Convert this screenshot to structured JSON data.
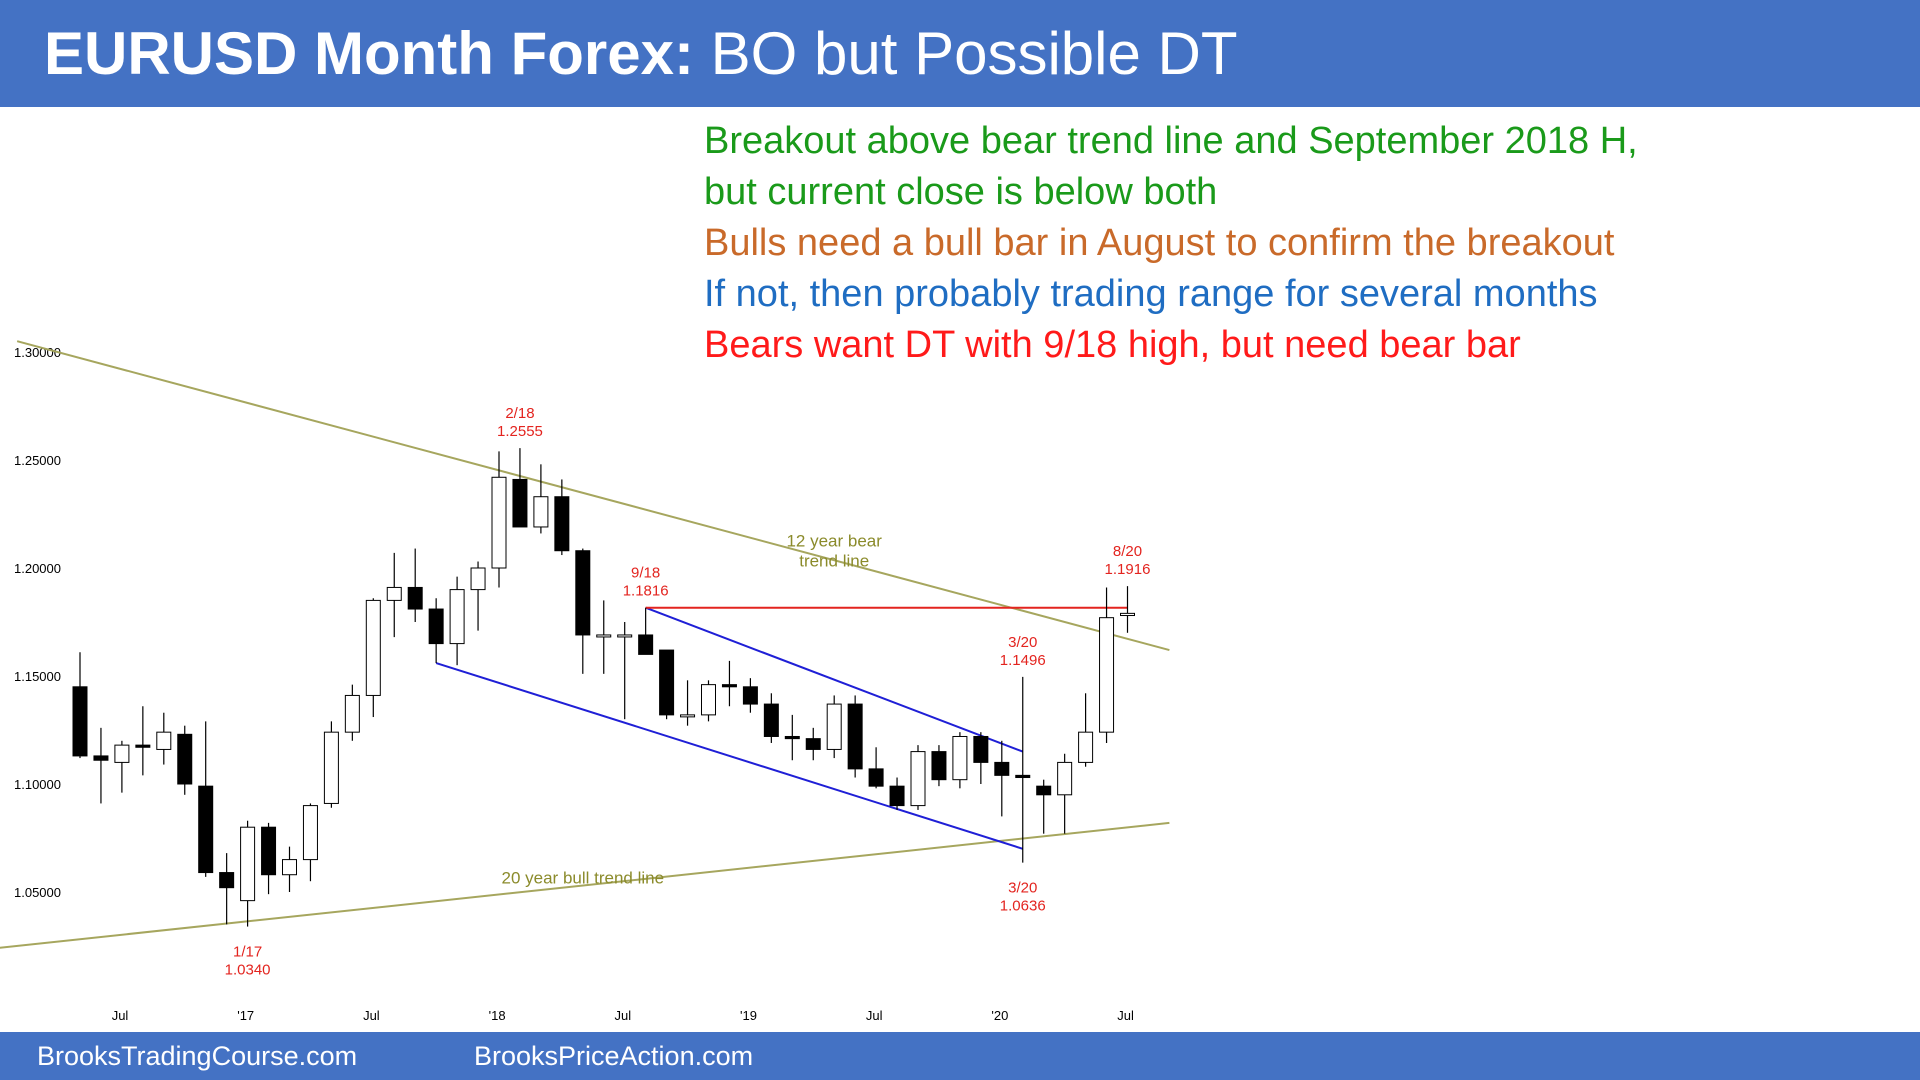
{
  "header": {
    "title_bold": "EURUSD Month Forex:",
    "title_rest": " BO but Possible DT"
  },
  "notes": [
    {
      "text": "Breakout above bear trend line and September 2018 H,",
      "color": "#1a9a1a"
    },
    {
      "text": "but current close is below both",
      "color": "#1a9a1a"
    },
    {
      "text": "Bulls need a bull bar in August to confirm the breakout",
      "color": "#c96a2a"
    },
    {
      "text": "If not, then probably trading range for several months",
      "color": "#1f6dc2"
    },
    {
      "text": "Bears want DT with 9/18 high, but need bear bar",
      "color": "#ff1a1a"
    }
  ],
  "footer": {
    "left": "BrooksTradingCourse.com",
    "right": "BrooksPriceAction.com"
  },
  "chart_data": {
    "type": "candlestick",
    "y_ticks": [
      {
        "value": 1.05,
        "label": "1.05000"
      },
      {
        "value": 1.1,
        "label": "1.10000"
      },
      {
        "value": 1.15,
        "label": "1.15000"
      },
      {
        "value": 1.2,
        "label": "1.20000"
      },
      {
        "value": 1.25,
        "label": "1.25000"
      },
      {
        "value": 1.3,
        "label": "1.30000"
      }
    ],
    "ylim": [
      1.0,
      1.31
    ],
    "x_ticks": [
      {
        "index": 0,
        "label": "Jul"
      },
      {
        "index": 6,
        "label": "'17"
      },
      {
        "index": 12,
        "label": "Jul"
      },
      {
        "index": 18,
        "label": "'18"
      },
      {
        "index": 24,
        "label": "Jul"
      },
      {
        "index": 30,
        "label": "'19"
      },
      {
        "index": 36,
        "label": "Jul"
      },
      {
        "index": 42,
        "label": "'20"
      },
      {
        "index": 48,
        "label": "Jul"
      }
    ],
    "candles": [
      {
        "o": 1.145,
        "h": 1.161,
        "l": 1.112,
        "c": 1.113
      },
      {
        "o": 1.113,
        "h": 1.126,
        "l": 1.091,
        "c": 1.111
      },
      {
        "o": 1.11,
        "h": 1.12,
        "l": 1.096,
        "c": 1.118
      },
      {
        "o": 1.118,
        "h": 1.136,
        "l": 1.104,
        "c": 1.117
      },
      {
        "o": 1.116,
        "h": 1.133,
        "l": 1.109,
        "c": 1.124
      },
      {
        "o": 1.123,
        "h": 1.127,
        "l": 1.095,
        "c": 1.1
      },
      {
        "o": 1.099,
        "h": 1.129,
        "l": 1.057,
        "c": 1.059
      },
      {
        "o": 1.059,
        "h": 1.068,
        "l": 1.035,
        "c": 1.052
      },
      {
        "o": 1.046,
        "h": 1.083,
        "l": 1.034,
        "c": 1.08
      },
      {
        "o": 1.08,
        "h": 1.082,
        "l": 1.049,
        "c": 1.058
      },
      {
        "o": 1.058,
        "h": 1.071,
        "l": 1.05,
        "c": 1.065
      },
      {
        "o": 1.065,
        "h": 1.091,
        "l": 1.055,
        "c": 1.09
      },
      {
        "o": 1.091,
        "h": 1.129,
        "l": 1.089,
        "c": 1.124
      },
      {
        "o": 1.124,
        "h": 1.146,
        "l": 1.12,
        "c": 1.141
      },
      {
        "o": 1.141,
        "h": 1.186,
        "l": 1.131,
        "c": 1.185
      },
      {
        "o": 1.185,
        "h": 1.207,
        "l": 1.168,
        "c": 1.191
      },
      {
        "o": 1.191,
        "h": 1.209,
        "l": 1.175,
        "c": 1.181
      },
      {
        "o": 1.181,
        "h": 1.186,
        "l": 1.156,
        "c": 1.165
      },
      {
        "o": 1.165,
        "h": 1.196,
        "l": 1.155,
        "c": 1.19
      },
      {
        "o": 1.19,
        "h": 1.203,
        "l": 1.171,
        "c": 1.2
      },
      {
        "o": 1.2,
        "h": 1.254,
        "l": 1.191,
        "c": 1.242
      },
      {
        "o": 1.241,
        "h": 1.2555,
        "l": 1.219,
        "c": 1.219
      },
      {
        "o": 1.219,
        "h": 1.248,
        "l": 1.216,
        "c": 1.233
      },
      {
        "o": 1.233,
        "h": 1.241,
        "l": 1.206,
        "c": 1.208
      },
      {
        "o": 1.208,
        "h": 1.209,
        "l": 1.151,
        "c": 1.169
      },
      {
        "o": 1.169,
        "h": 1.185,
        "l": 1.151,
        "c": 1.169
      },
      {
        "o": 1.169,
        "h": 1.175,
        "l": 1.13,
        "c": 1.169
      },
      {
        "o": 1.169,
        "h": 1.1816,
        "l": 1.161,
        "c": 1.16
      },
      {
        "o": 1.162,
        "h": 1.162,
        "l": 1.13,
        "c": 1.132
      },
      {
        "o": 1.132,
        "h": 1.148,
        "l": 1.127,
        "c": 1.132
      },
      {
        "o": 1.132,
        "h": 1.148,
        "l": 1.129,
        "c": 1.146
      },
      {
        "o": 1.146,
        "h": 1.157,
        "l": 1.136,
        "c": 1.145
      },
      {
        "o": 1.145,
        "h": 1.149,
        "l": 1.133,
        "c": 1.137
      },
      {
        "o": 1.137,
        "h": 1.142,
        "l": 1.119,
        "c": 1.122
      },
      {
        "o": 1.122,
        "h": 1.132,
        "l": 1.111,
        "c": 1.121
      },
      {
        "o": 1.121,
        "h": 1.126,
        "l": 1.111,
        "c": 1.116
      },
      {
        "o": 1.116,
        "h": 1.141,
        "l": 1.112,
        "c": 1.137
      },
      {
        "o": 1.137,
        "h": 1.141,
        "l": 1.103,
        "c": 1.107
      },
      {
        "o": 1.107,
        "h": 1.117,
        "l": 1.098,
        "c": 1.099
      },
      {
        "o": 1.099,
        "h": 1.103,
        "l": 1.088,
        "c": 1.09
      },
      {
        "o": 1.09,
        "h": 1.118,
        "l": 1.088,
        "c": 1.115
      },
      {
        "o": 1.115,
        "h": 1.118,
        "l": 1.099,
        "c": 1.102
      },
      {
        "o": 1.102,
        "h": 1.124,
        "l": 1.098,
        "c": 1.122
      },
      {
        "o": 1.122,
        "h": 1.124,
        "l": 1.1,
        "c": 1.11
      },
      {
        "o": 1.11,
        "h": 1.12,
        "l": 1.085,
        "c": 1.104
      },
      {
        "o": 1.104,
        "h": 1.1496,
        "l": 1.0636,
        "c": 1.103
      },
      {
        "o": 1.099,
        "h": 1.102,
        "l": 1.077,
        "c": 1.095
      },
      {
        "o": 1.095,
        "h": 1.114,
        "l": 1.077,
        "c": 1.11
      },
      {
        "o": 1.11,
        "h": 1.142,
        "l": 1.108,
        "c": 1.124
      },
      {
        "o": 1.124,
        "h": 1.191,
        "l": 1.119,
        "c": 1.177
      },
      {
        "o": 1.178,
        "h": 1.1916,
        "l": 1.17,
        "c": 1.179
      }
    ],
    "trend_lines": [
      {
        "name": "12 year bear trend line",
        "from": [
          -3,
          1.305
        ],
        "to": [
          52,
          1.162
        ],
        "color": "#a6a65e"
      },
      {
        "name": "20 year bull trend line",
        "from": [
          -4,
          1.024
        ],
        "to": [
          52,
          1.082
        ],
        "color": "#a6a65e"
      },
      {
        "name": "channel upper",
        "from": [
          27,
          1.1816
        ],
        "to": [
          45,
          1.115
        ],
        "color": "#1f1fd6"
      },
      {
        "name": "channel lower",
        "from": [
          17,
          1.156
        ],
        "to": [
          45,
          1.07
        ],
        "color": "#1f1fd6"
      },
      {
        "name": "September 2018 high",
        "from": [
          27,
          1.1816
        ],
        "to": [
          50,
          1.1816
        ],
        "color": "#e3241f"
      }
    ],
    "annotations": [
      {
        "lines": [
          "2/18",
          "1.2555"
        ],
        "index": 21,
        "value": 1.2555,
        "position": "above",
        "color": "#e3241f"
      },
      {
        "lines": [
          "9/18",
          "1.1816"
        ],
        "index": 27,
        "value": 1.1816,
        "position": "above",
        "color": "#e3241f"
      },
      {
        "lines": [
          "8/20",
          "1.1916"
        ],
        "index": 50,
        "value": 1.1916,
        "position": "above",
        "color": "#e3241f"
      },
      {
        "lines": [
          "3/20",
          "1.1496"
        ],
        "index": 45,
        "value": 1.1496,
        "position": "above",
        "color": "#e3241f"
      },
      {
        "lines": [
          "3/20",
          "1.0636"
        ],
        "index": 45,
        "value": 1.0636,
        "position": "below",
        "color": "#e3241f"
      },
      {
        "lines": [
          "1/17",
          "1.0340"
        ],
        "index": 8,
        "value": 1.034,
        "position": "below",
        "color": "#e3241f"
      },
      {
        "lines": [
          "12 year bear",
          "trend line"
        ],
        "index": 36,
        "value": 1.21,
        "position": "at",
        "color": "#8b8b2b"
      },
      {
        "lines": [
          "20 year bull trend line"
        ],
        "index": 24,
        "value": 1.054,
        "position": "at",
        "color": "#8b8b2b"
      }
    ]
  }
}
